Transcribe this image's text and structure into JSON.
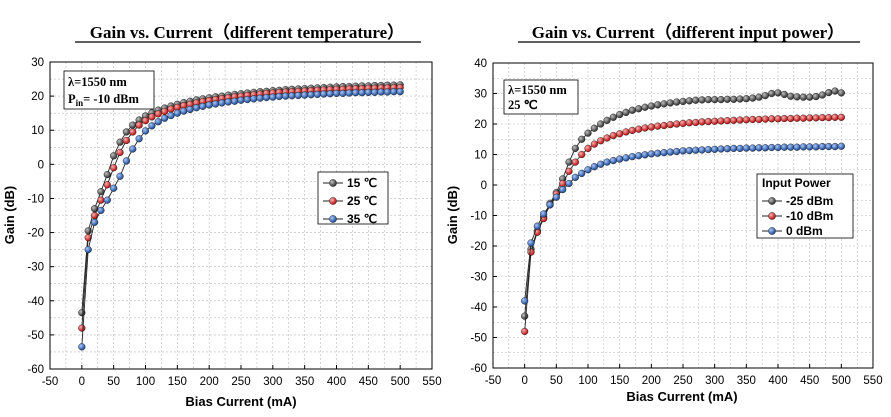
{
  "chart_data": [
    {
      "type": "line",
      "title": "Gain vs. Current（different temperature）",
      "xlabel": "Bias Current (mA)",
      "ylabel": "Gain (dB)",
      "xlim": [
        -50,
        550
      ],
      "ylim": [
        -60,
        30
      ],
      "xticks": [
        -50,
        0,
        50,
        100,
        150,
        200,
        250,
        300,
        350,
        400,
        450,
        500,
        550
      ],
      "yticks": [
        -60,
        -50,
        -40,
        -30,
        -20,
        -10,
        0,
        10,
        20,
        30
      ],
      "grid": true,
      "legend_position": "center-right",
      "legend_title": "",
      "annotation_lines": [
        "λ=1550 nm",
        "P",
        "in",
        "= -10 dBm"
      ],
      "x": [
        0,
        10,
        20,
        30,
        40,
        50,
        60,
        70,
        80,
        90,
        100,
        110,
        120,
        130,
        140,
        150,
        160,
        170,
        180,
        190,
        200,
        210,
        220,
        230,
        240,
        250,
        260,
        270,
        280,
        290,
        300,
        310,
        320,
        330,
        340,
        350,
        360,
        370,
        380,
        390,
        400,
        410,
        420,
        430,
        440,
        450,
        460,
        470,
        480,
        490,
        500
      ],
      "series": [
        {
          "name": "15 ℃",
          "color": "#3a3a3a",
          "values": [
            -43.5,
            -19.5,
            -13.0,
            -8.0,
            -3.0,
            2.5,
            6.5,
            9.5,
            11.5,
            13.0,
            14.2,
            15.1,
            15.9,
            16.5,
            17.1,
            17.6,
            18.1,
            18.5,
            18.9,
            19.2,
            19.5,
            19.8,
            20.0,
            20.3,
            20.5,
            20.7,
            20.9,
            21.1,
            21.3,
            21.4,
            21.6,
            21.7,
            21.9,
            22.0,
            22.1,
            22.2,
            22.3,
            22.4,
            22.5,
            22.6,
            22.7,
            22.8,
            22.8,
            22.9,
            23.0,
            23.0,
            23.1,
            23.1,
            23.2,
            23.2,
            23.3
          ]
        },
        {
          "name": "25 ℃",
          "color": "#d01818",
          "values": [
            -48.0,
            -21.5,
            -15.0,
            -10.5,
            -6.0,
            -1.0,
            3.5,
            7.0,
            9.5,
            11.5,
            12.8,
            13.9,
            14.8,
            15.5,
            16.2,
            16.7,
            17.2,
            17.6,
            18.0,
            18.4,
            18.7,
            19.0,
            19.3,
            19.5,
            19.8,
            20.0,
            20.2,
            20.4,
            20.6,
            20.8,
            20.9,
            21.1,
            21.2,
            21.3,
            21.4,
            21.5,
            21.6,
            21.7,
            21.8,
            21.9,
            22.0,
            22.0,
            22.1,
            22.2,
            22.2,
            22.3,
            22.3,
            22.4,
            22.4,
            22.5,
            22.5
          ]
        },
        {
          "name": "35 ℃",
          "color": "#1f5aa8",
          "values": [
            -53.5,
            -25.0,
            -17.0,
            -13.5,
            -10.5,
            -7.0,
            -3.5,
            1.0,
            4.5,
            7.5,
            9.8,
            11.3,
            12.5,
            13.5,
            14.3,
            15.0,
            15.6,
            16.1,
            16.6,
            17.0,
            17.4,
            17.7,
            18.0,
            18.3,
            18.5,
            18.8,
            19.0,
            19.2,
            19.4,
            19.6,
            19.7,
            19.9,
            20.0,
            20.1,
            20.2,
            20.3,
            20.4,
            20.5,
            20.6,
            20.7,
            20.8,
            20.8,
            20.9,
            21.0,
            21.0,
            21.1,
            21.1,
            21.2,
            21.2,
            21.3,
            21.3
          ]
        }
      ]
    },
    {
      "type": "line",
      "title": "Gain vs. Current（different input power）",
      "xlabel": "Bias Current (mA)",
      "ylabel": "Gain (dB)",
      "xlim": [
        -50,
        550
      ],
      "ylim": [
        -60,
        40
      ],
      "xticks": [
        -50,
        0,
        50,
        100,
        150,
        200,
        250,
        300,
        350,
        400,
        450,
        500,
        550
      ],
      "yticks": [
        -60,
        -50,
        -40,
        -30,
        -20,
        -10,
        0,
        10,
        20,
        30,
        40
      ],
      "grid": true,
      "legend_position": "center-right",
      "legend_title": "Input Power",
      "annotation_lines": [
        "λ=1550 nm",
        "25 ℃"
      ],
      "x": [
        0,
        10,
        20,
        30,
        40,
        50,
        60,
        70,
        80,
        90,
        100,
        110,
        120,
        130,
        140,
        150,
        160,
        170,
        180,
        190,
        200,
        210,
        220,
        230,
        240,
        250,
        260,
        270,
        280,
        290,
        300,
        310,
        320,
        330,
        340,
        350,
        360,
        370,
        380,
        390,
        400,
        410,
        420,
        430,
        440,
        450,
        460,
        470,
        480,
        490,
        500
      ],
      "series": [
        {
          "name": "-25 dBm",
          "color": "#3a3a3a",
          "values": [
            -43.0,
            -21.0,
            -15.0,
            -10.5,
            -6.0,
            -2.5,
            2.0,
            7.5,
            12.0,
            15.0,
            17.0,
            18.6,
            20.0,
            21.2,
            22.2,
            23.1,
            23.8,
            24.5,
            25.0,
            25.5,
            25.9,
            26.3,
            26.6,
            26.9,
            27.2,
            27.4,
            27.6,
            27.8,
            27.9,
            28.0,
            28.0,
            28.0,
            28.1,
            28.1,
            28.2,
            28.3,
            28.5,
            28.8,
            29.3,
            30.0,
            30.2,
            29.7,
            29.1,
            28.9,
            28.8,
            28.8,
            29.0,
            29.5,
            30.3,
            30.8,
            30.2
          ]
        },
        {
          "name": "-10 dBm",
          "color": "#d01818",
          "values": [
            -48.0,
            -22.0,
            -15.5,
            -11.0,
            -6.5,
            -3.0,
            0.5,
            4.5,
            7.5,
            10.0,
            12.0,
            13.4,
            14.5,
            15.4,
            16.2,
            16.8,
            17.4,
            17.9,
            18.3,
            18.7,
            19.0,
            19.3,
            19.5,
            19.8,
            20.0,
            20.2,
            20.4,
            20.5,
            20.7,
            20.8,
            20.9,
            21.0,
            21.1,
            21.2,
            21.3,
            21.4,
            21.5,
            21.5,
            21.6,
            21.7,
            21.7,
            21.8,
            21.8,
            21.9,
            21.9,
            22.0,
            22.0,
            22.1,
            22.1,
            22.2,
            22.2
          ]
        },
        {
          "name": "0 dBm",
          "color": "#1f5aa8",
          "values": [
            -38.0,
            -19.0,
            -13.5,
            -9.5,
            -6.5,
            -4.0,
            -1.5,
            0.5,
            2.5,
            3.8,
            5.0,
            6.0,
            6.8,
            7.5,
            8.0,
            8.5,
            8.9,
            9.3,
            9.6,
            9.9,
            10.2,
            10.4,
            10.6,
            10.8,
            11.0,
            11.2,
            11.3,
            11.4,
            11.5,
            11.6,
            11.7,
            11.8,
            11.9,
            12.0,
            12.0,
            12.1,
            12.1,
            12.2,
            12.2,
            12.3,
            12.3,
            12.4,
            12.4,
            12.4,
            12.5,
            12.5,
            12.5,
            12.6,
            12.6,
            12.6,
            12.7
          ]
        }
      ]
    }
  ]
}
